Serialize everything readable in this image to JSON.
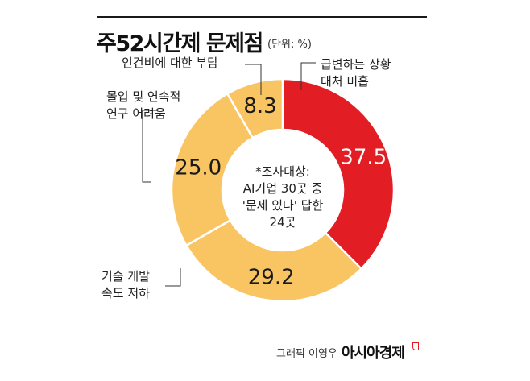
{
  "header": {
    "title": "주52시간제 문제점",
    "unit": "(단위: %)"
  },
  "chart_data": {
    "type": "pie",
    "title": "주52시간제 문제점",
    "unit": "(단위: %)",
    "labels": [
      [
        "급변하는 상황",
        "대처 미흡"
      ],
      [
        "기술 개발",
        "속도 저하"
      ],
      [
        "몰입 및 연속적",
        "연구 어려움"
      ],
      [
        "인건비에 대한 부담"
      ]
    ],
    "values": [
      37.5,
      29.2,
      25.0,
      8.3
    ],
    "value_labels": [
      "37.5",
      "29.2",
      "25.0",
      "8.3"
    ],
    "colors": [
      "#e21d24",
      "#f9c563",
      "#f9c563",
      "#f9c563"
    ],
    "center_note": [
      "*조사대상:",
      "AI기업 30곳 중",
      "'문제 있다' 답한",
      "24곳"
    ]
  },
  "footer": {
    "credit": "그래픽 이영우",
    "brand": "아시아경제"
  }
}
